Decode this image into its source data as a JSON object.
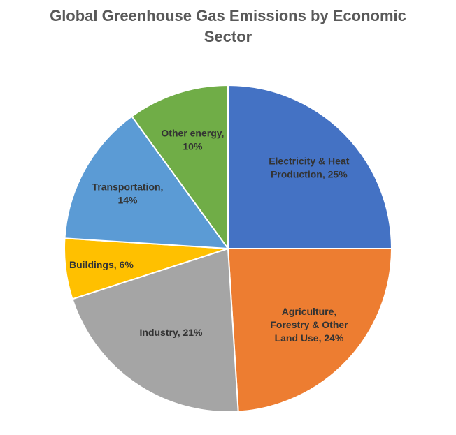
{
  "chart_data": {
    "type": "pie",
    "title_lines": [
      "Global Greenhouse Gas Emissions by Economic",
      "Sector"
    ],
    "start_angle_deg": 0,
    "direction": "clockwise",
    "slices": [
      {
        "name": "Electricity & Heat Production",
        "value": 25,
        "label_lines": [
          "Electricity & Heat",
          "Production, 25%"
        ],
        "color": "#4472C4"
      },
      {
        "name": "Agriculture, Forestry & Other Land Use",
        "value": 24,
        "label_lines": [
          "Agriculture,",
          "Forestry & Other",
          "Land Use, 24%"
        ],
        "color": "#ED7D31"
      },
      {
        "name": "Industry",
        "value": 21,
        "label_lines": [
          "Industry, 21%"
        ],
        "color": "#A5A5A5"
      },
      {
        "name": "Buildings",
        "value": 6,
        "label_lines": [
          "Buildings, 6%"
        ],
        "color": "#FFC000"
      },
      {
        "name": "Transportation",
        "value": 14,
        "label_lines": [
          "Transportation,",
          "14%"
        ],
        "color": "#5B9BD5"
      },
      {
        "name": "Other energy",
        "value": 10,
        "label_lines": [
          "Other energy,",
          "10%"
        ],
        "color": "#70AD47"
      }
    ]
  }
}
